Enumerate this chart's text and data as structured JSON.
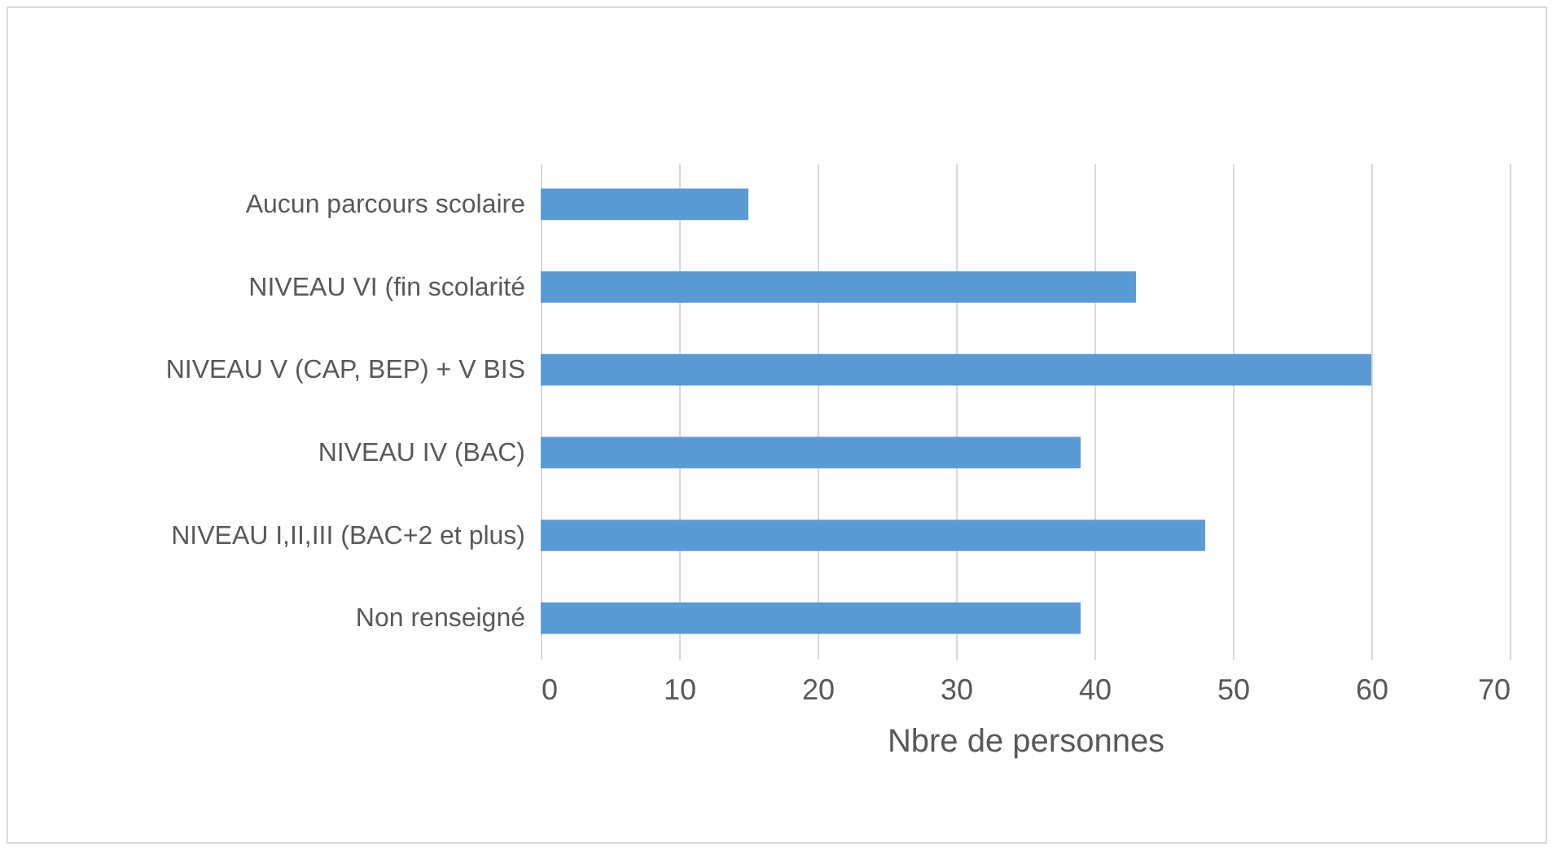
{
  "chart_data": {
    "type": "bar",
    "orientation": "horizontal",
    "xlabel": "Nbre de personnes",
    "categories": [
      "Aucun parcours scolaire",
      "NIVEAU VI (fin scolarité",
      "NIVEAU V (CAP, BEP) + V BIS",
      "NIVEAU IV (BAC)",
      "NIVEAU I,II,III (BAC+2 et plus)",
      "Non renseigné"
    ],
    "series": [
      {
        "color": "#5b9bd5",
        "values": [
          15,
          43,
          60,
          39,
          48,
          39
        ]
      }
    ],
    "xlim": [
      0,
      70
    ],
    "xticks": [
      0,
      10,
      20,
      30,
      40,
      50,
      60,
      70
    ],
    "grid": "x"
  }
}
